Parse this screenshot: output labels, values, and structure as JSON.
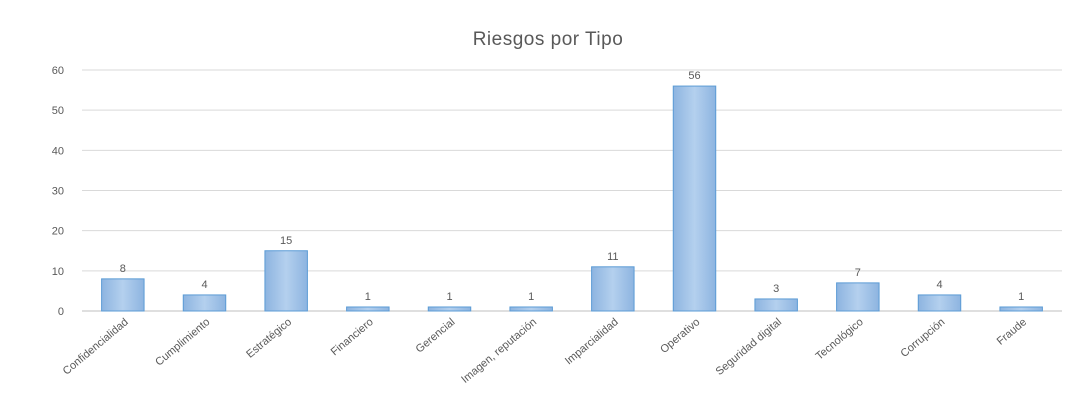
{
  "chart_data": {
    "type": "bar",
    "title": "Riesgos por Tipo",
    "xlabel": "",
    "ylabel": "",
    "ylim": [
      0,
      60
    ],
    "yticks": [
      0,
      10,
      20,
      30,
      40,
      50,
      60
    ],
    "grid": true,
    "legend": "none",
    "bar_color": "#9dc3e6",
    "bar_edge_color": "#5b9bd5",
    "categories": [
      "Confidencialidad",
      "Cumplimiento",
      "Estratégico",
      "Financiero",
      "Gerencial",
      "Imagen, reputación",
      "Imparcialidad",
      "Operativo",
      "Seguridad digital",
      "Tecnológico",
      "Corrupción",
      "Fraude"
    ],
    "values": [
      8,
      4,
      15,
      1,
      1,
      1,
      11,
      56,
      3,
      7,
      4,
      1
    ]
  }
}
